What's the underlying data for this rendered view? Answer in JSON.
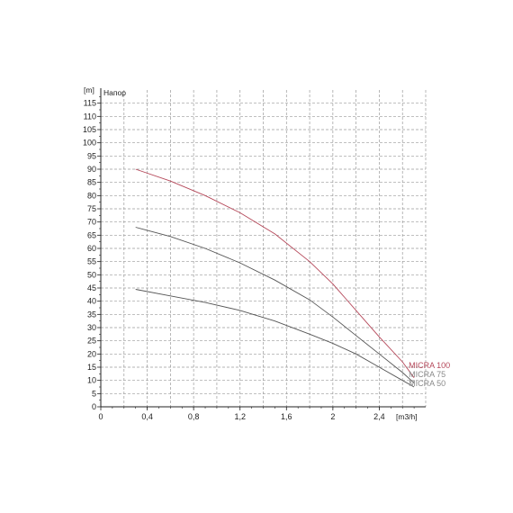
{
  "chart_data": {
    "type": "line",
    "title": "",
    "ylabel_unit": "[m]",
    "ylabel": "Напор",
    "xlabel": "[m3/h]",
    "xlim": [
      0,
      2.8
    ],
    "ylim": [
      0,
      120
    ],
    "grid": true,
    "x_tick_values": [
      0,
      0.4,
      0.8,
      1.2,
      1.6,
      2,
      2.4
    ],
    "x_tick_labels": [
      "0",
      "0,4",
      "0,8",
      "1,2",
      "1,6",
      "2",
      "2,4"
    ],
    "y_tick_values": [
      0,
      5,
      10,
      15,
      20,
      25,
      30,
      35,
      40,
      45,
      50,
      55,
      60,
      65,
      70,
      75,
      80,
      85,
      90,
      95,
      100,
      105,
      110,
      115
    ],
    "y_tick_labels": [
      "0",
      "5",
      "10",
      "15",
      "20",
      "25",
      "30",
      "35",
      "40",
      "45",
      "50",
      "55",
      "60",
      "65",
      "70",
      "75",
      "80",
      "85",
      "90",
      "95",
      "100",
      "105",
      "110",
      "115"
    ],
    "series": [
      {
        "name": "MICRA 100",
        "color": "#b5485a",
        "label_color": "#b5485a",
        "x": [
          0.3,
          0.6,
          0.9,
          1.2,
          1.5,
          1.8,
          2.0,
          2.2,
          2.4,
          2.6,
          2.7
        ],
        "y": [
          90,
          85.5,
          80,
          73.5,
          65.5,
          55,
          46.5,
          36.5,
          26.5,
          17,
          11
        ]
      },
      {
        "name": "MICRA 75",
        "color": "#555555",
        "label_color": "#8a8a8a",
        "x": [
          0.3,
          0.6,
          0.9,
          1.2,
          1.5,
          1.8,
          2.0,
          2.2,
          2.4,
          2.6,
          2.7
        ],
        "y": [
          68,
          64.5,
          60,
          54.5,
          48,
          40.5,
          34,
          27,
          20,
          13,
          9
        ]
      },
      {
        "name": "MICRA 50",
        "color": "#555555",
        "label_color": "#8a8a8a",
        "x": [
          0.3,
          0.6,
          0.9,
          1.2,
          1.5,
          1.8,
          2.0,
          2.2,
          2.4,
          2.6,
          2.7
        ],
        "y": [
          44.5,
          42,
          39.5,
          36.5,
          32.5,
          27.5,
          24,
          20,
          15,
          10,
          7.5
        ]
      }
    ]
  }
}
